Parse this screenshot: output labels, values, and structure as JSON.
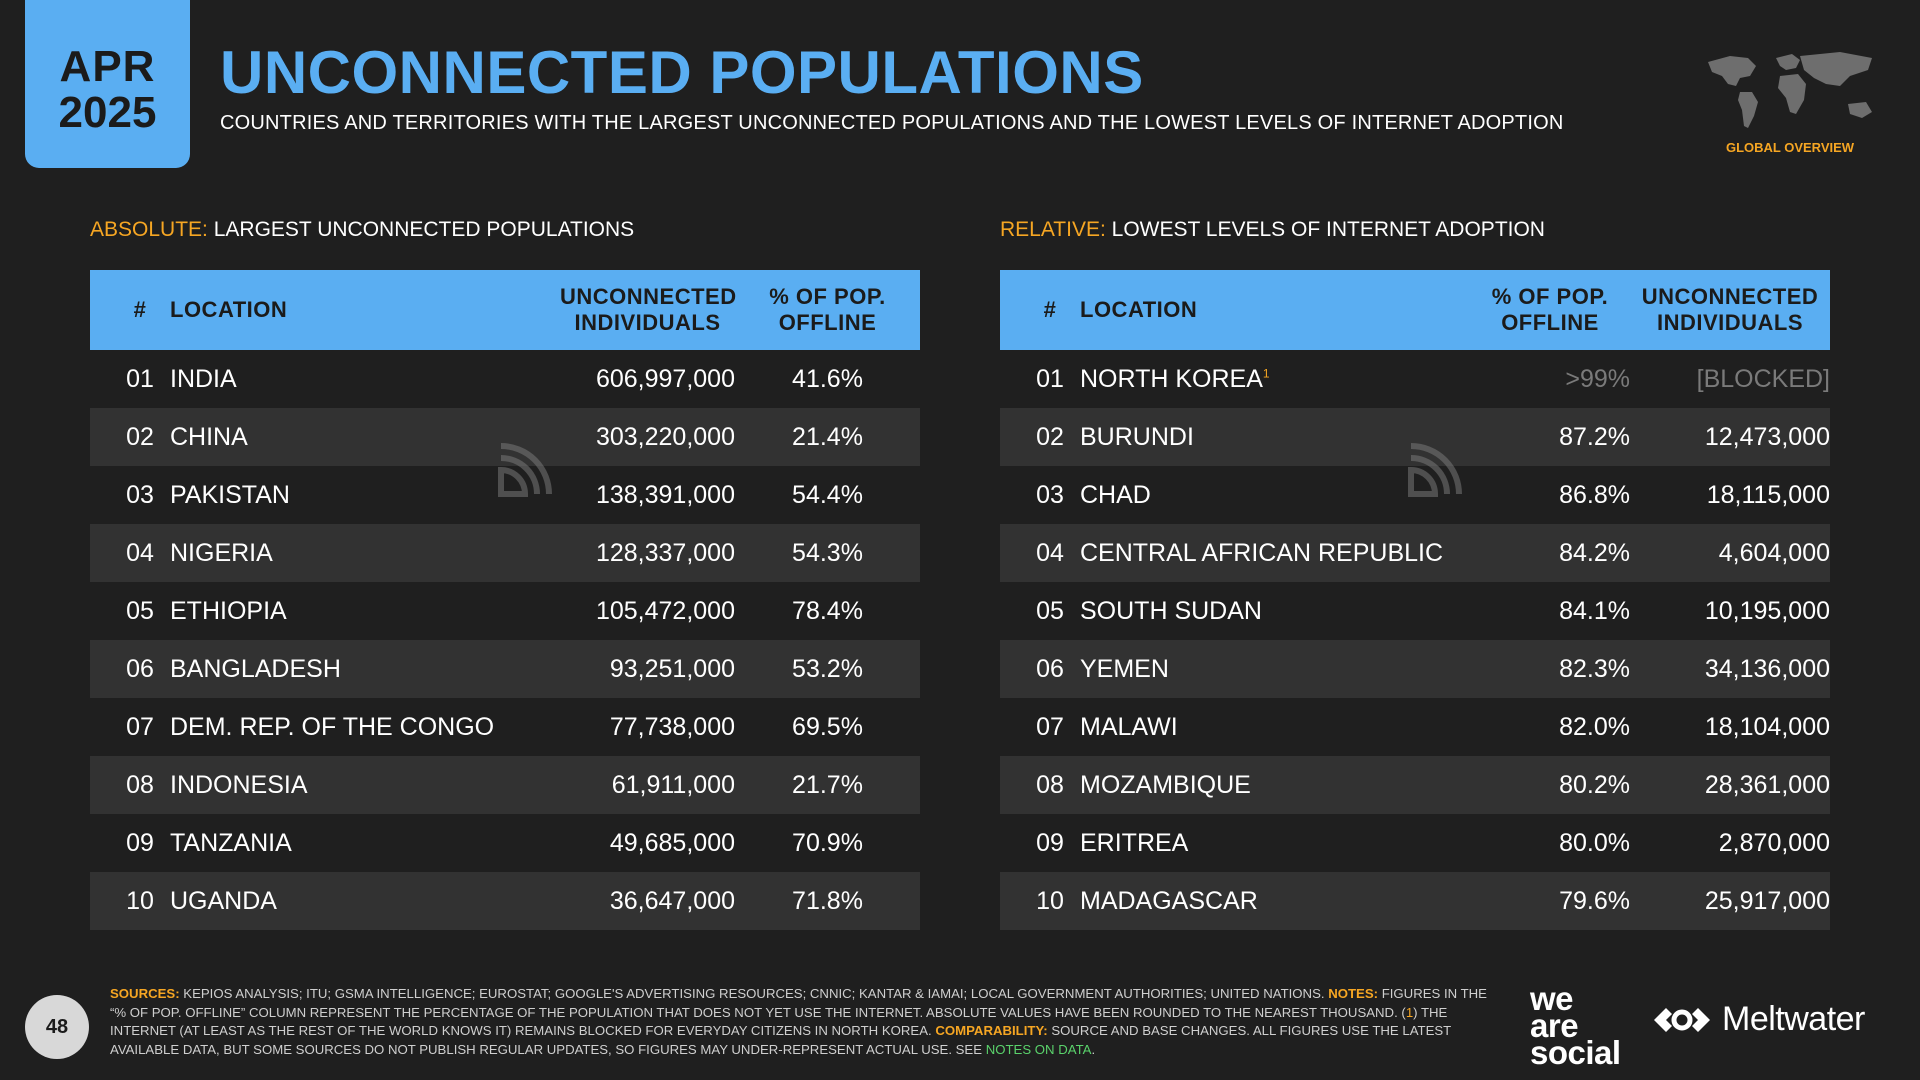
{
  "date": {
    "month": "APR",
    "year": "2025"
  },
  "header": {
    "title": "UNCONNECTED POPULATIONS",
    "subtitle": "COUNTRIES AND TERRITORIES WITH THE LARGEST UNCONNECTED POPULATIONS AND THE LOWEST LEVELS OF INTERNET ADOPTION",
    "overview_label": "GLOBAL OVERVIEW"
  },
  "left_table": {
    "section_accent": "ABSOLUTE:",
    "section_title": "LARGEST UNCONNECTED POPULATIONS",
    "headers": {
      "num": "#",
      "location": "LOCATION",
      "col_a_1": "UNCONNECTED",
      "col_a_2": "INDIVIDUALS",
      "col_b_1": "% OF POP.",
      "col_b_2": "OFFLINE"
    },
    "rows": [
      {
        "num": "01",
        "location": "INDIA",
        "a": "606,997,000",
        "b": "41.6%"
      },
      {
        "num": "02",
        "location": "CHINA",
        "a": "303,220,000",
        "b": "21.4%"
      },
      {
        "num": "03",
        "location": "PAKISTAN",
        "a": "138,391,000",
        "b": "54.4%"
      },
      {
        "num": "04",
        "location": "NIGERIA",
        "a": "128,337,000",
        "b": "54.3%"
      },
      {
        "num": "05",
        "location": "ETHIOPIA",
        "a": "105,472,000",
        "b": "78.4%"
      },
      {
        "num": "06",
        "location": "BANGLADESH",
        "a": "93,251,000",
        "b": "53.2%"
      },
      {
        "num": "07",
        "location": "DEM. REP. OF THE CONGO",
        "a": "77,738,000",
        "b": "69.5%"
      },
      {
        "num": "08",
        "location": "INDONESIA",
        "a": "61,911,000",
        "b": "21.7%"
      },
      {
        "num": "09",
        "location": "TANZANIA",
        "a": "49,685,000",
        "b": "70.9%"
      },
      {
        "num": "10",
        "location": "UGANDA",
        "a": "36,647,000",
        "b": "71.8%"
      }
    ]
  },
  "right_table": {
    "section_accent": "RELATIVE:",
    "section_title": "LOWEST LEVELS OF INTERNET ADOPTION",
    "headers": {
      "num": "#",
      "location": "LOCATION",
      "col_a_1": "% OF POP.",
      "col_a_2": "OFFLINE",
      "col_b_1": "UNCONNECTED",
      "col_b_2": "INDIVIDUALS"
    },
    "rows": [
      {
        "num": "01",
        "location": "NORTH KOREA",
        "sup": "1",
        "a": ">99%",
        "b": "[BLOCKED]"
      },
      {
        "num": "02",
        "location": "BURUNDI",
        "a": "87.2%",
        "b": "12,473,000"
      },
      {
        "num": "03",
        "location": "CHAD",
        "a": "86.8%",
        "b": "18,115,000"
      },
      {
        "num": "04",
        "location": "CENTRAL AFRICAN REPUBLIC",
        "a": "84.2%",
        "b": "4,604,000"
      },
      {
        "num": "05",
        "location": "SOUTH SUDAN",
        "a": "84.1%",
        "b": "10,195,000"
      },
      {
        "num": "06",
        "location": "YEMEN",
        "a": "82.3%",
        "b": "34,136,000"
      },
      {
        "num": "07",
        "location": "MALAWI",
        "a": "82.0%",
        "b": "18,104,000"
      },
      {
        "num": "08",
        "location": "MOZAMBIQUE",
        "a": "80.2%",
        "b": "28,361,000"
      },
      {
        "num": "09",
        "location": "ERITREA",
        "a": "80.0%",
        "b": "2,870,000"
      },
      {
        "num": "10",
        "location": "MADAGASCAR",
        "a": "79.6%",
        "b": "25,917,000"
      }
    ]
  },
  "footer": {
    "page_number": "48",
    "sources_label": "SOURCES:",
    "sources_text": "KEPIOS ANALYSIS; ITU; GSMA INTELLIGENCE; EUROSTAT; GOOGLE'S ADVERTISING RESOURCES; CNNIC; KANTAR & IAMAI; LOCAL GOVERNMENT AUTHORITIES; UNITED NATIONS.",
    "notes_label": "NOTES:",
    "notes_text_1": "FIGURES IN THE “% OF POP. OFFLINE” COLUMN REPRESENT THE PERCENTAGE OF THE POPULATION THAT DOES NOT YET USE THE INTERNET. ABSOLUTE VALUES HAVE BEEN ROUNDED TO THE NEAREST THOUSAND. (",
    "notes_ref": "1",
    "notes_text_2": ") THE INTERNET (AT LEAST AS THE REST OF THE WORLD KNOWS IT) REMAINS BLOCKED FOR EVERYDAY CITIZENS IN NORTH KOREA.",
    "comparability_label": "COMPARABILITY:",
    "comparability_text": "SOURCE AND BASE CHANGES. ALL FIGURES USE THE LATEST AVAILABLE DATA, BUT SOME SOURCES DO NOT PUBLISH REGULAR UPDATES, SO FIGURES MAY UNDER-REPRESENT ACTUAL USE. SEE",
    "notes_link": "NOTES ON DATA",
    "brand_was_1": "we",
    "brand_was_2": "are",
    "brand_was_3": "social",
    "brand_meltwater": "Meltwater"
  },
  "colors": {
    "accent_blue": "#5aaef2",
    "accent_orange": "#f6a623",
    "background": "#1f1f1f",
    "row_alt": "#323232"
  }
}
